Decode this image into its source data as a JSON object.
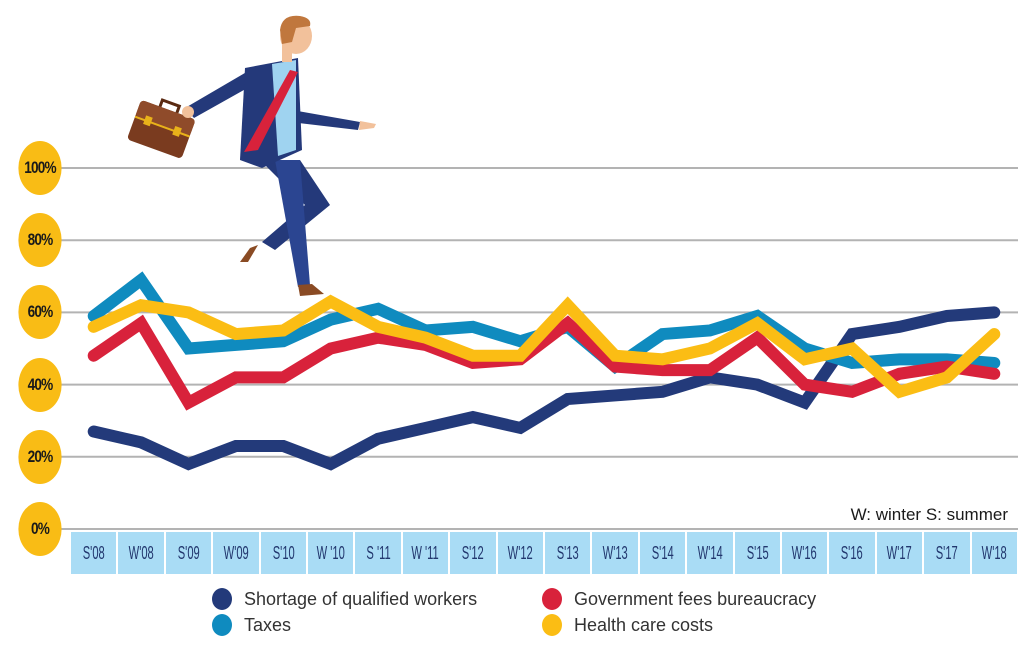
{
  "chart_data": {
    "type": "line",
    "title": "",
    "xlabel": "",
    "ylabel": "",
    "ylim": [
      0,
      100
    ],
    "yticks": [
      "0%",
      "20%",
      "40%",
      "60%",
      "80%",
      "100%"
    ],
    "grid": true,
    "legend_position": "bottom",
    "annotation": "W: winter S: summer",
    "categories": [
      "S'08",
      "W'08",
      "S'09",
      "W'09",
      "S'10",
      "W '10",
      "S '11",
      "W '11",
      "S'12",
      "W'12",
      "S'13",
      "W'13",
      "S'14",
      "W'14",
      "S'15",
      "W'16",
      "S'16",
      "W'17",
      "S'17",
      "W'18"
    ],
    "series": [
      {
        "name": "Shortage of qualified workers",
        "color": "#233a7a",
        "values": [
          27,
          24,
          18,
          23,
          23,
          18,
          25,
          28,
          31,
          28,
          36,
          37,
          38,
          42,
          40,
          35,
          54,
          56,
          59,
          60
        ]
      },
      {
        "name": "Taxes",
        "color": "#0f8bbf",
        "values": [
          59,
          69,
          50,
          51,
          52,
          58,
          61,
          55,
          56,
          52,
          56,
          45,
          54,
          55,
          59,
          50,
          46,
          47,
          47,
          46
        ]
      },
      {
        "name": "Government fees bureaucracy",
        "color": "#d8223b",
        "values": [
          48,
          57,
          35,
          42,
          42,
          50,
          53,
          51,
          46,
          47,
          57,
          45,
          44,
          44,
          53,
          40,
          38,
          43,
          45,
          43
        ]
      },
      {
        "name": "Health care costs",
        "color": "#fbbd14",
        "values": [
          56,
          62,
          60,
          54,
          55,
          63,
          56,
          53,
          48,
          48,
          62,
          48,
          47,
          50,
          57,
          47,
          50,
          38,
          42,
          54
        ]
      }
    ]
  },
  "note": "W: winter S: summer",
  "legend": [
    {
      "label": "Shortage of qualified workers",
      "color": "#233a7a"
    },
    {
      "label": "Government fees bureaucracy",
      "color": "#d8223b"
    },
    {
      "label": "Taxes",
      "color": "#0f8bbf"
    },
    {
      "label": "Health care costs",
      "color": "#fbbd14"
    }
  ],
  "illustration": "businessman-running-with-briefcase"
}
